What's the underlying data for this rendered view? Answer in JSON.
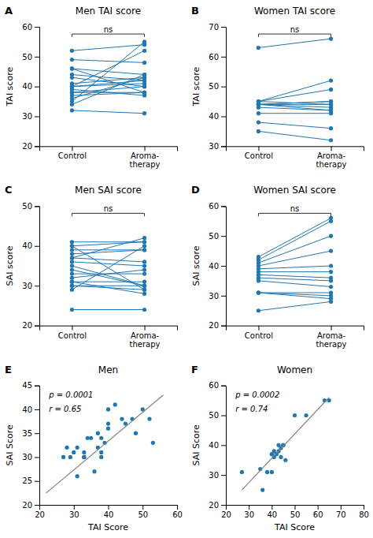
{
  "chart_data": [
    {
      "type": "line",
      "title": "Men TAI score",
      "panel_label": "A",
      "ylabel": "TAI score",
      "categories": [
        "Control",
        "Aroma-\ntherapy"
      ],
      "marker": "circle",
      "series": [
        {
          "values": [
            32,
            31
          ]
        },
        {
          "values": [
            34,
            44
          ]
        },
        {
          "values": [
            35,
            55
          ]
        },
        {
          "values": [
            36,
            43
          ]
        },
        {
          "values": [
            37,
            38
          ]
        },
        {
          "values": [
            38,
            38
          ]
        },
        {
          "values": [
            38,
            40
          ]
        },
        {
          "values": [
            39,
            37
          ]
        },
        {
          "values": [
            40,
            52
          ]
        },
        {
          "values": [
            40,
            41
          ]
        },
        {
          "values": [
            40,
            42
          ]
        },
        {
          "values": [
            41,
            43
          ]
        },
        {
          "values": [
            43,
            40
          ]
        },
        {
          "values": [
            44,
            42
          ]
        },
        {
          "values": [
            46,
            44
          ]
        },
        {
          "values": [
            46,
            38
          ]
        },
        {
          "values": [
            49,
            48
          ]
        },
        {
          "values": [
            52,
            54
          ]
        }
      ],
      "ylim": [
        20,
        60
      ],
      "yticks": [
        20,
        30,
        40,
        50,
        60
      ],
      "annotations": [
        "ns"
      ]
    },
    {
      "type": "line",
      "title": "Women TAI score",
      "panel_label": "B",
      "ylabel": "TAI score",
      "categories": [
        "Control",
        "Aroma-\ntherapy"
      ],
      "marker": "circle",
      "series": [
        {
          "values": [
            35,
            32
          ]
        },
        {
          "values": [
            38,
            36
          ]
        },
        {
          "values": [
            41,
            41
          ]
        },
        {
          "values": [
            43,
            42
          ]
        },
        {
          "values": [
            44,
            44
          ]
        },
        {
          "values": [
            44,
            42
          ]
        },
        {
          "values": [
            44,
            45
          ]
        },
        {
          "values": [
            44,
            43
          ]
        },
        {
          "values": [
            44,
            45
          ]
        },
        {
          "values": [
            45,
            49
          ]
        },
        {
          "values": [
            45,
            44
          ]
        },
        {
          "values": [
            45,
            52
          ]
        },
        {
          "values": [
            63,
            66
          ]
        }
      ],
      "ylim": [
        30,
        70
      ],
      "yticks": [
        30,
        40,
        50,
        60,
        70
      ],
      "annotations": [
        "ns"
      ]
    },
    {
      "type": "line",
      "title": "Men SAI score",
      "panel_label": "C",
      "ylabel": "SAI score",
      "categories": [
        "Control",
        "Aroma-\ntherapy"
      ],
      "marker": "circle",
      "series": [
        {
          "values": [
            24,
            24
          ]
        },
        {
          "values": [
            29,
            40
          ]
        },
        {
          "values": [
            30,
            29
          ]
        },
        {
          "values": [
            30,
            30
          ]
        },
        {
          "values": [
            31,
            31
          ]
        },
        {
          "values": [
            31,
            28
          ]
        },
        {
          "values": [
            32,
            34
          ]
        },
        {
          "values": [
            33,
            33
          ]
        },
        {
          "values": [
            34,
            30
          ]
        },
        {
          "values": [
            35,
            30
          ]
        },
        {
          "values": [
            36,
            35
          ]
        },
        {
          "values": [
            37,
            42
          ]
        },
        {
          "values": [
            37,
            36
          ]
        },
        {
          "values": [
            38,
            39
          ]
        },
        {
          "values": [
            39,
            39
          ]
        },
        {
          "values": [
            40,
            29
          ]
        },
        {
          "values": [
            40,
            41
          ]
        },
        {
          "values": [
            41,
            41
          ]
        }
      ],
      "ylim": [
        20,
        50
      ],
      "yticks": [
        20,
        30,
        40,
        50
      ],
      "annotations": [
        "ns"
      ]
    },
    {
      "type": "line",
      "title": "Women SAI score",
      "panel_label": "D",
      "ylabel": "SAI score",
      "categories": [
        "Control",
        "Aroma-\ntherapy"
      ],
      "marker": "circle",
      "series": [
        {
          "values": [
            25,
            28
          ]
        },
        {
          "values": [
            31,
            29
          ]
        },
        {
          "values": [
            31,
            30
          ]
        },
        {
          "values": [
            31,
            31
          ]
        },
        {
          "values": [
            35,
            33
          ]
        },
        {
          "values": [
            36,
            35
          ]
        },
        {
          "values": [
            37,
            36
          ]
        },
        {
          "values": [
            38,
            38
          ]
        },
        {
          "values": [
            39,
            40
          ]
        },
        {
          "values": [
            40,
            45
          ]
        },
        {
          "values": [
            41,
            50
          ]
        },
        {
          "values": [
            42,
            55
          ]
        },
        {
          "values": [
            43,
            56
          ]
        }
      ],
      "ylim": [
        20,
        60
      ],
      "yticks": [
        20,
        30,
        40,
        50,
        60
      ],
      "annotations": [
        "ns"
      ]
    },
    {
      "type": "scatter",
      "title": "Men",
      "panel_label": "E",
      "xlabel": "TAI Score",
      "ylabel": "SAI Score",
      "xlim": [
        20,
        60
      ],
      "xticks": [
        20,
        30,
        40,
        50,
        60
      ],
      "ylim": [
        20,
        45
      ],
      "yticks": [
        20,
        25,
        30,
        35,
        40,
        45
      ],
      "series": [
        {
          "type": "scatter",
          "x": [
            27,
            28,
            29,
            30,
            31,
            31,
            33,
            33,
            33,
            34,
            35,
            36,
            37,
            37,
            38,
            38,
            38,
            39,
            40,
            40,
            40,
            42,
            44,
            45,
            47,
            48,
            50,
            52,
            53
          ],
          "values": [
            30,
            32,
            30,
            31,
            32,
            26,
            30,
            31,
            30,
            34,
            34,
            27,
            32,
            35,
            34,
            31,
            30,
            33,
            37,
            40,
            36,
            41,
            38,
            37,
            38,
            35,
            40,
            38,
            33
          ]
        },
        {
          "type": "line",
          "x": [
            22,
            56
          ],
          "values": [
            22.5,
            43.0
          ]
        }
      ],
      "annotations": [
        "p = 0.0001",
        "r = 0.65"
      ]
    },
    {
      "type": "scatter",
      "title": "Women",
      "panel_label": "F",
      "xlabel": "TAI Score",
      "ylabel": "SAI Score",
      "xlim": [
        20,
        80
      ],
      "xticks": [
        20,
        30,
        40,
        50,
        60,
        70,
        80
      ],
      "ylim": [
        20,
        60
      ],
      "yticks": [
        20,
        30,
        40,
        50,
        60
      ],
      "series": [
        {
          "type": "scatter",
          "x": [
            27,
            35,
            36,
            38,
            40,
            40,
            41,
            41,
            42,
            42,
            43,
            43,
            44,
            44,
            45,
            45,
            46,
            50,
            55,
            63,
            65
          ],
          "values": [
            31,
            32,
            25,
            31,
            31,
            37,
            36,
            38,
            37,
            37,
            40,
            38,
            36,
            39,
            40,
            40,
            35,
            50,
            50,
            55,
            55
          ]
        },
        {
          "type": "line",
          "x": [
            27,
            65
          ],
          "values": [
            25.0,
            56.0
          ]
        }
      ],
      "annotations": [
        "p = 0.0002",
        "r = 0.74"
      ]
    }
  ]
}
